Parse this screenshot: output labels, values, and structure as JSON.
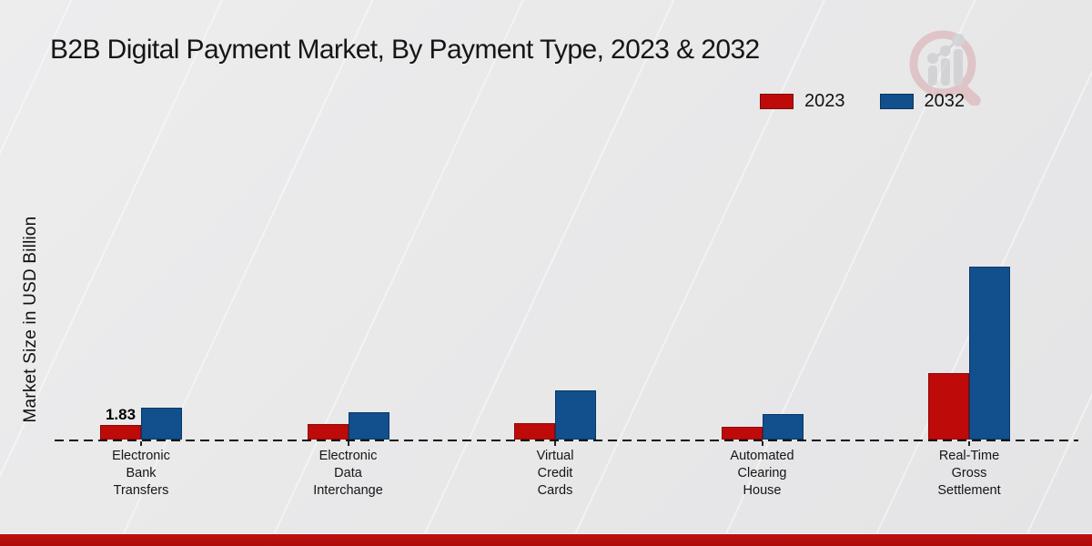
{
  "page": {
    "title": "B2B Digital Payment Market, By Payment Type, 2023 & 2032",
    "ylabel": "Market Size in USD Billion"
  },
  "legend": {
    "items": [
      {
        "label": "2023",
        "color": "#bf0a0a"
      },
      {
        "label": "2032",
        "color": "#11508c"
      }
    ]
  },
  "chart_data": {
    "type": "bar",
    "title": "B2B Digital Payment Market, By Payment Type, 2023 & 2032",
    "ylabel": "Market Size in USD Billion",
    "xlabel": "",
    "categories": [
      "Electronic Bank Transfers",
      "Electronic Data Interchange",
      "Virtual Credit Cards",
      "Automated Clearing House",
      "Real-Time Gross Settlement"
    ],
    "category_lines": [
      [
        "Electronic",
        "Bank",
        "Transfers"
      ],
      [
        "Electronic",
        "Data",
        "Interchange"
      ],
      [
        "Virtual",
        "Credit",
        "Cards"
      ],
      [
        "Automated",
        "Clearing",
        "House"
      ],
      [
        "Real-Time",
        "Gross",
        "Settlement"
      ]
    ],
    "series": [
      {
        "name": "2023",
        "color": "#bf0a0a",
        "values": [
          1.83,
          1.95,
          2.15,
          1.65,
          8.55
        ]
      },
      {
        "name": "2032",
        "color": "#11508c",
        "values": [
          4.1,
          3.55,
          6.4,
          3.35,
          22.4
        ]
      }
    ],
    "annotations": [
      {
        "category_index": 0,
        "series": "2023",
        "text": "1.83"
      }
    ],
    "ylim": [
      0,
      24
    ],
    "grid": false,
    "y_axis_ticks_visible": false,
    "baseline_style": "dashed",
    "legend_position": "top-right"
  },
  "footer": {
    "accent_color": "#ae0c0c"
  }
}
